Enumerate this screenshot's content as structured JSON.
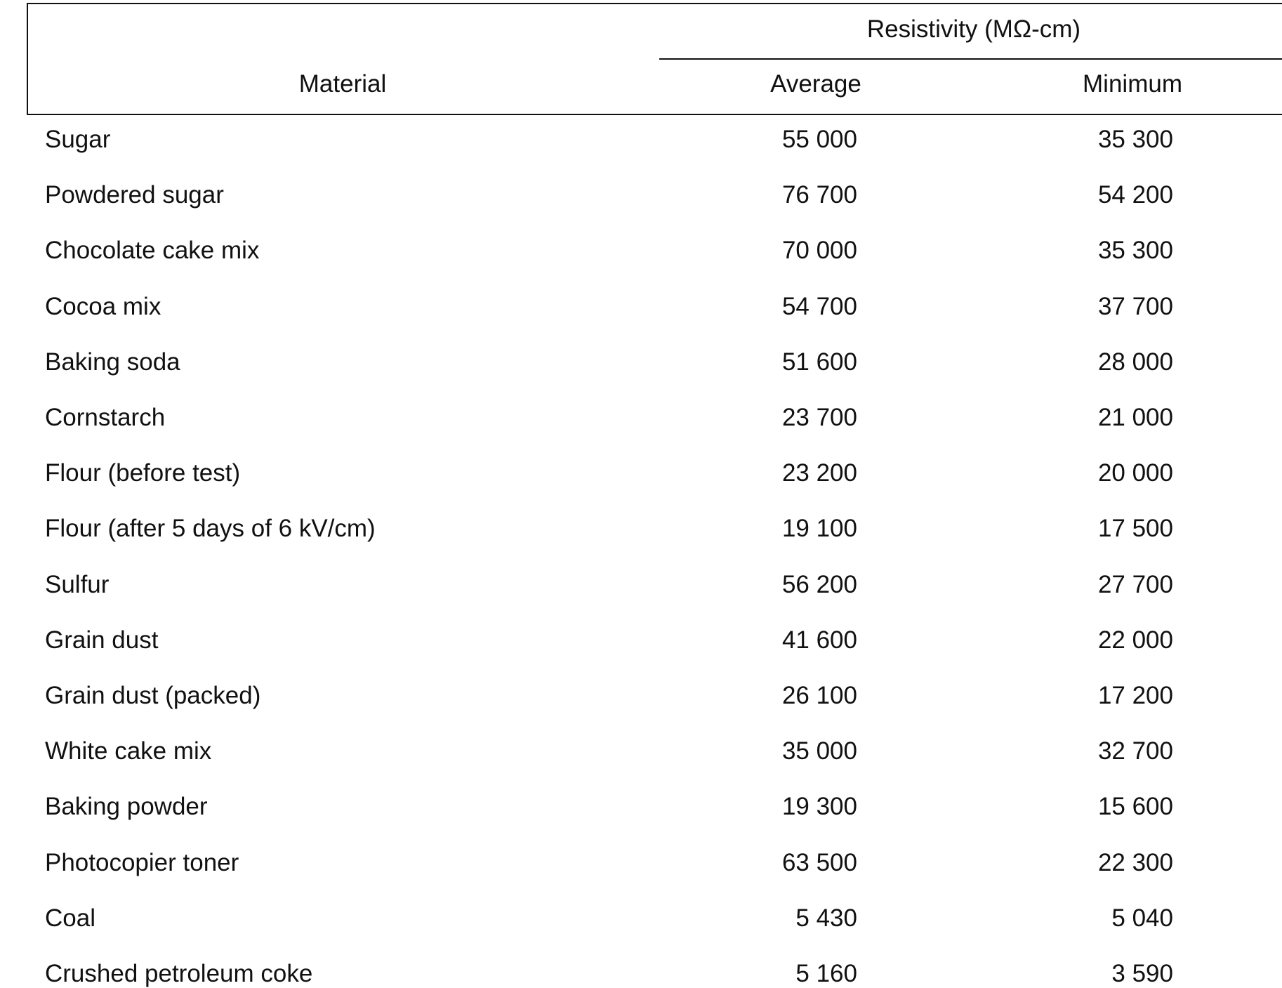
{
  "table": {
    "group_header": "Resistivity (MΩ-cm)",
    "columns": [
      "Material",
      "Average",
      "Minimum"
    ],
    "rows": [
      [
        "Sugar",
        "55 000",
        "35 300"
      ],
      [
        "Powdered sugar",
        "76 700",
        "54 200"
      ],
      [
        "Chocolate cake mix",
        "70 000",
        "35 300"
      ],
      [
        "Cocoa mix",
        "54 700",
        "37 700"
      ],
      [
        "Baking soda",
        "51 600",
        "28 000"
      ],
      [
        "Cornstarch",
        "23 700",
        "21 000"
      ],
      [
        "Flour (before test)",
        "23 200",
        "20 000"
      ],
      [
        "Flour (after 5 days of 6 kV/cm)",
        "19 100",
        "17 500"
      ],
      [
        "Sulfur",
        "56 200",
        "27 700"
      ],
      [
        "Grain dust",
        "41 600",
        "22 000"
      ],
      [
        "Grain dust (packed)",
        "26 100",
        "17 200"
      ],
      [
        "White cake mix",
        "35 000",
        "32 700"
      ],
      [
        "Baking powder",
        "19 300",
        "15 600"
      ],
      [
        "Photocopier toner",
        "63 500",
        "22 300"
      ],
      [
        "Coal",
        "5 430",
        "5 040"
      ],
      [
        "Crushed petroleum coke",
        "5 160",
        "3 590"
      ]
    ]
  }
}
